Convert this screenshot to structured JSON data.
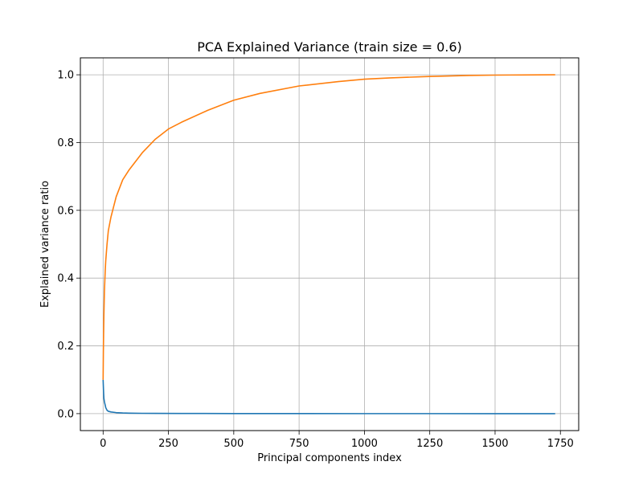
{
  "chart_data": {
    "type": "line",
    "title": "PCA Explained Variance (train size = 0.6)",
    "xlabel": "Principal components index",
    "ylabel": "Explained variance ratio",
    "xlim": [
      -87,
      1820
    ],
    "ylim": [
      -0.05,
      1.05
    ],
    "xticks": [
      0,
      250,
      500,
      750,
      1000,
      1250,
      1500,
      1750
    ],
    "yticks": [
      0.0,
      0.2,
      0.4,
      0.6,
      0.8,
      1.0
    ],
    "grid": true,
    "colors": {
      "series_1": "#1f77b4",
      "series_2": "#ff7f0e",
      "grid": "#b0b0b0"
    },
    "series": [
      {
        "x": [
          0,
          1,
          2,
          3,
          5,
          8,
          10,
          15,
          20,
          30,
          50,
          75,
          100,
          150,
          200,
          300,
          500,
          750,
          1000,
          1250,
          1500,
          1730
        ],
        "values": [
          0.1,
          0.08,
          0.06,
          0.045,
          0.035,
          0.025,
          0.018,
          0.01,
          0.007,
          0.005,
          0.003,
          0.002,
          0.0015,
          0.001,
          0.0008,
          0.0005,
          0.0003,
          0.0002,
          0.0001,
          7e-05,
          3e-05,
          0.0
        ]
      },
      {
        "x": [
          0,
          1,
          2,
          3,
          5,
          8,
          10,
          15,
          20,
          30,
          40,
          50,
          75,
          100,
          150,
          200,
          250,
          300,
          400,
          500,
          600,
          750,
          900,
          1000,
          1100,
          1250,
          1400,
          1500,
          1600,
          1730
        ],
        "values": [
          0.1,
          0.18,
          0.24,
          0.29,
          0.36,
          0.42,
          0.45,
          0.5,
          0.54,
          0.58,
          0.61,
          0.64,
          0.69,
          0.72,
          0.77,
          0.81,
          0.84,
          0.86,
          0.895,
          0.925,
          0.945,
          0.967,
          0.98,
          0.987,
          0.991,
          0.995,
          0.998,
          0.999,
          0.9995,
          1.0
        ]
      }
    ]
  }
}
